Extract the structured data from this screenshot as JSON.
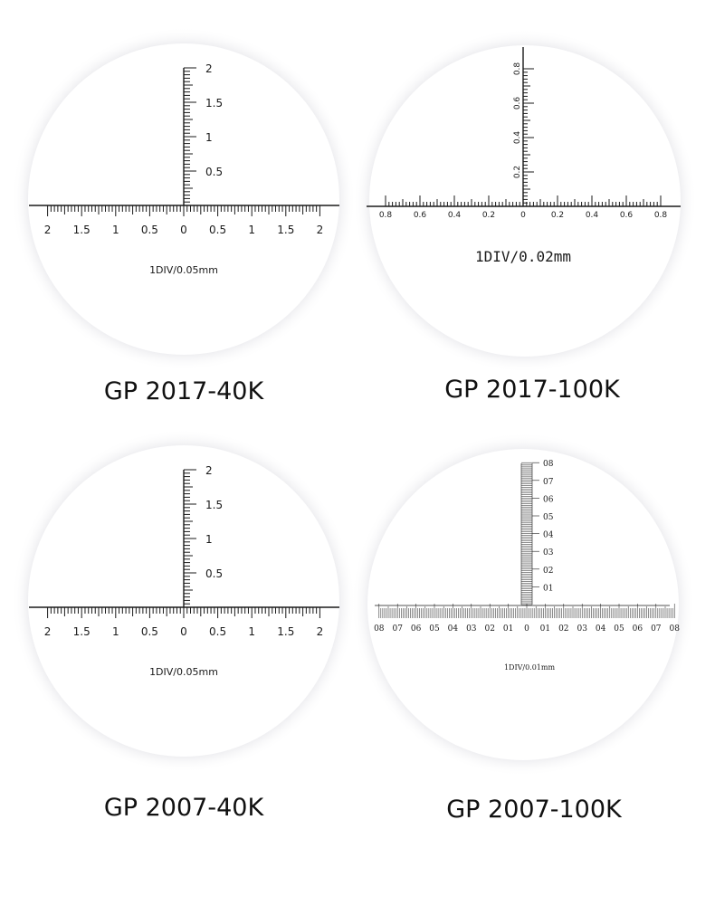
{
  "colors": {
    "ink": "#1a1a1a",
    "lens": "#ffffff",
    "halo": "#e9e9ec"
  },
  "reticles": [
    {
      "model": "GP 2017-40K",
      "caption": "1DIV/0.05mm",
      "h_labels": [
        "2",
        "1.5",
        "1",
        "0.5",
        "0",
        "0.5",
        "1",
        "1.5",
        "2"
      ],
      "v_labels": [
        "0.5",
        "1",
        "1.5",
        "2"
      ]
    },
    {
      "model": "GP 2017-100K",
      "caption": "1DIV/0.02mm",
      "h_labels": [
        "0.8",
        "0.6",
        "0.4",
        "0.2",
        "0",
        "0.2",
        "0.4",
        "0.6",
        "0.8"
      ],
      "v_labels": [
        "0.2",
        "0.4",
        "0.6",
        "0.8"
      ]
    },
    {
      "model": "GP 2007-40K",
      "caption": "1DIV/0.05mm",
      "h_labels": [
        "2",
        "1.5",
        "1",
        "0.5",
        "0",
        "0.5",
        "1",
        "1.5",
        "2"
      ],
      "v_labels": [
        "0.5",
        "1",
        "1.5",
        "2"
      ]
    },
    {
      "model": "GP 2007-100K",
      "caption": "1DIV/0.01mm",
      "h_labels": [
        "08",
        "07",
        "06",
        "05",
        "04",
        "03",
        "02",
        "01",
        "0",
        "01",
        "02",
        "03",
        "04",
        "05",
        "06",
        "07",
        "08"
      ],
      "v_labels": [
        "01",
        "02",
        "03",
        "04",
        "05",
        "06",
        "07",
        "08"
      ]
    }
  ]
}
